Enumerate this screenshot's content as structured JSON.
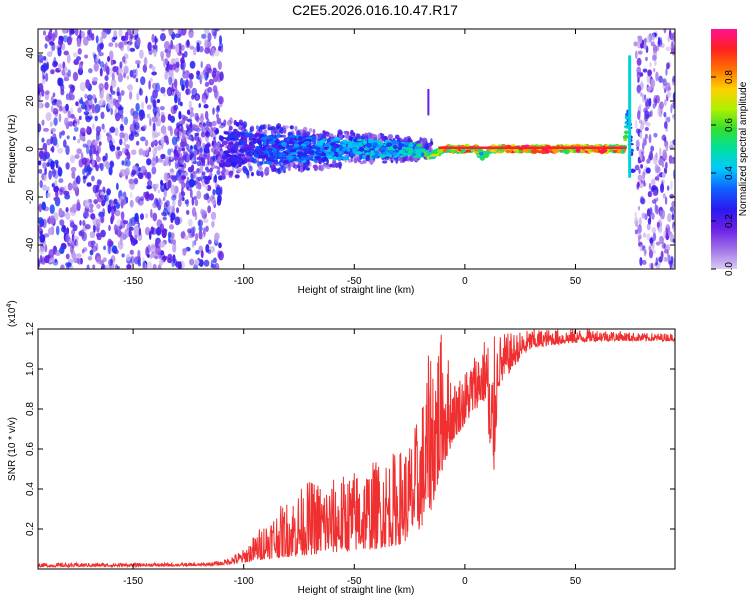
{
  "page_title": "C2E5.2026.016.10.47.R17",
  "colorbar": {
    "label": "Normalized spectral amplitude",
    "ticks": [
      "0.0",
      "0.2",
      "0.4",
      "0.6",
      "0.8"
    ],
    "colors": [
      "#d8ccf2",
      "#a070e8",
      "#6a1fe6",
      "#2a1af0",
      "#1060ff",
      "#00c8ff",
      "#00e0a0",
      "#30e030",
      "#b0f000",
      "#ffd000",
      "#ff7000",
      "#ff2020",
      "#ff1090"
    ]
  },
  "chart_data": [
    {
      "type": "heatmap",
      "title": "C2E5.2026.016.10.47.R17",
      "xlabel": "Height of straight line (km)",
      "ylabel": "Frequency (Hz)",
      "xlim": [
        -193,
        95
      ],
      "ylim": [
        -50,
        50
      ],
      "x_ticks": [
        -150,
        -100,
        -50,
        0,
        50
      ],
      "y_ticks": [
        -40,
        -20,
        0,
        20,
        40
      ],
      "signal_trace": {
        "description": "dominant spectral line",
        "x": [
          -110,
          -90,
          -70,
          -50,
          -30,
          -20,
          -15,
          -10,
          0,
          5,
          8,
          12,
          20,
          40,
          60,
          72,
          74,
          76
        ],
        "freq": [
          0,
          0,
          0,
          0,
          0,
          -1,
          -3,
          0,
          0,
          0,
          -3,
          0,
          0,
          0,
          0,
          0,
          15,
          -10
        ],
        "amplitude": [
          0.25,
          0.35,
          0.4,
          0.45,
          0.5,
          0.6,
          0.7,
          0.8,
          0.95,
          0.9,
          0.6,
          0.9,
          0.95,
          0.95,
          0.95,
          0.8,
          0.4,
          0.3
        ]
      },
      "noise_region": {
        "x_range": [
          -193,
          -110
        ],
        "amplitude": 0.15
      },
      "noise_region_right": {
        "x_range": [
          77,
          95
        ],
        "amplitude": 0.12
      }
    },
    {
      "type": "line",
      "xlabel": "Height of straight line (km)",
      "ylabel": "SNR (10 * v/v)",
      "y_multiplier": "(x10",
      "y_exponent": "4",
      "y_multiplier_close": ")",
      "xlim": [
        -193,
        95
      ],
      "ylim": [
        0,
        12000
      ],
      "x_ticks": [
        -150,
        -100,
        -50,
        0,
        50
      ],
      "y_ticks": [
        "0.2",
        "0.4",
        "0.6",
        "0.8",
        "1.0",
        "1.2"
      ],
      "y_tick_values": [
        2000,
        4000,
        6000,
        8000,
        10000,
        12000
      ],
      "color": "#f03030",
      "envelope": {
        "x": [
          -193,
          -120,
          -110,
          -100,
          -90,
          -80,
          -70,
          -60,
          -50,
          -40,
          -30,
          -25,
          -20,
          -15,
          -10,
          -5,
          0,
          5,
          10,
          12,
          15,
          20,
          25,
          30,
          40,
          50,
          60,
          70,
          80,
          95
        ],
        "low": [
          100,
          150,
          200,
          300,
          500,
          600,
          700,
          800,
          900,
          1000,
          1200,
          1500,
          2000,
          3000,
          5000,
          6500,
          7200,
          8000,
          8500,
          2000,
          9000,
          9800,
          10500,
          11000,
          11200,
          11300,
          11400,
          11400,
          11400,
          11400
        ],
        "high": [
          300,
          300,
          400,
          1000,
          2500,
          3500,
          4500,
          4500,
          5000,
          5500,
          6000,
          6500,
          8000,
          11800,
          12000,
          9500,
          10000,
          11000,
          11800,
          11500,
          11800,
          11800,
          11900,
          12000,
          12000,
          12000,
          12000,
          11900,
          11800,
          11800
        ]
      }
    }
  ]
}
